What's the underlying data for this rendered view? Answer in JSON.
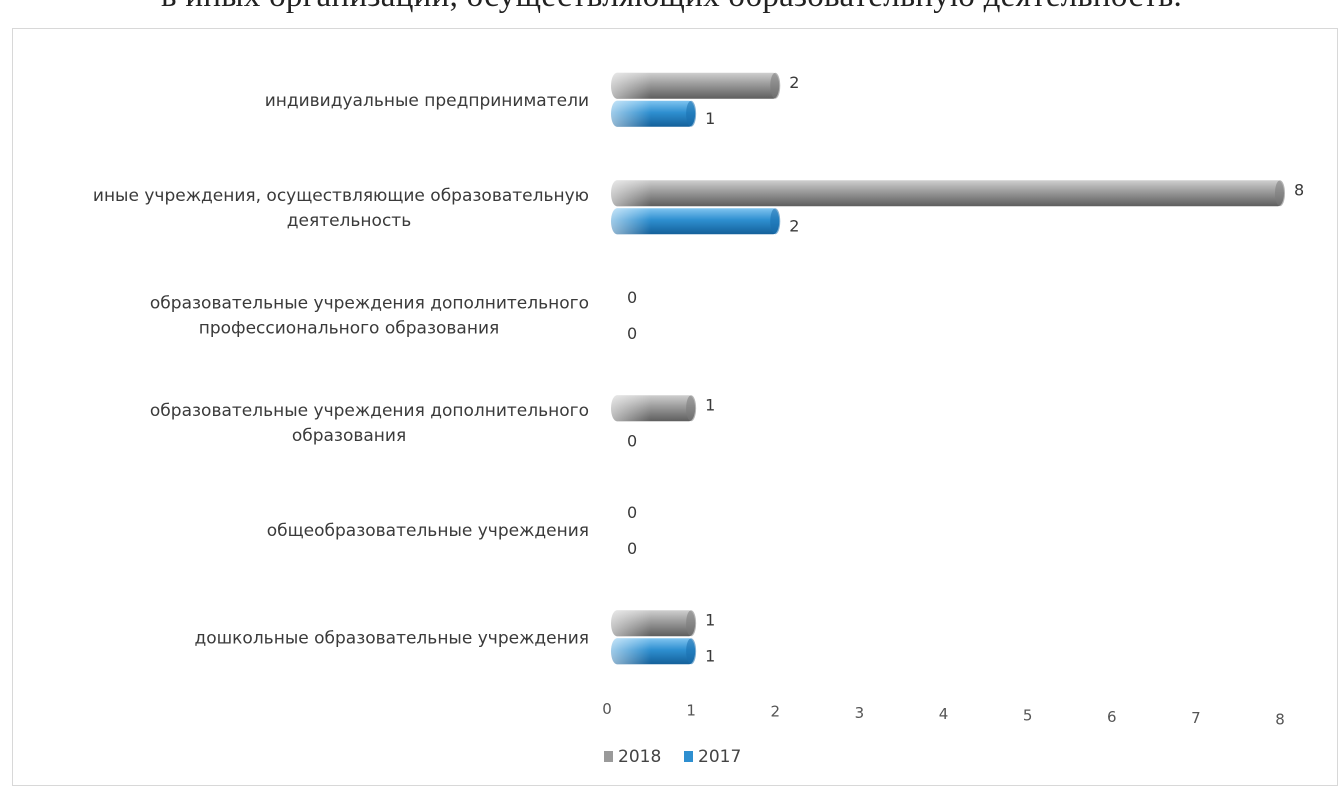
{
  "page": {
    "heading": "в иных организаций, осуществляющих образовательную деятельность."
  },
  "chart_data": {
    "type": "bar",
    "orientation": "horizontal",
    "categories": [
      "дошкольные образовательные учреждения",
      "общеобразовательные учреждения",
      "образовательные учреждения дополнительного образования",
      "образовательные учреждения дополнительного профессионального образования",
      "иные учреждения, осуществляющие образовательную деятельность",
      "индивидуальные предприниматели"
    ],
    "category_lines": [
      [
        "дошкольные образовательные учреждения"
      ],
      [
        "общеобразовательные учреждения"
      ],
      [
        "образовательные учреждения дополнительного",
        "образования"
      ],
      [
        "образовательные учреждения дополнительного",
        "профессионального образования"
      ],
      [
        "иные учреждения, осуществляющие образовательную",
        "деятельность"
      ],
      [
        "индивидуальные предприниматели"
      ]
    ],
    "series": [
      {
        "name": "2018",
        "values": [
          1,
          0,
          1,
          0,
          8,
          2
        ],
        "color": "#8c8c8c"
      },
      {
        "name": "2017",
        "values": [
          1,
          0,
          0,
          0,
          2,
          1
        ],
        "color": "#2e8fd0"
      }
    ],
    "xlim": [
      0,
      8
    ],
    "xticks": [
      "0",
      "1",
      "2",
      "3",
      "4",
      "5",
      "6",
      "7",
      "8"
    ],
    "legend": "bottom",
    "grid": false,
    "title": "",
    "xlabel": "",
    "ylabel": ""
  }
}
